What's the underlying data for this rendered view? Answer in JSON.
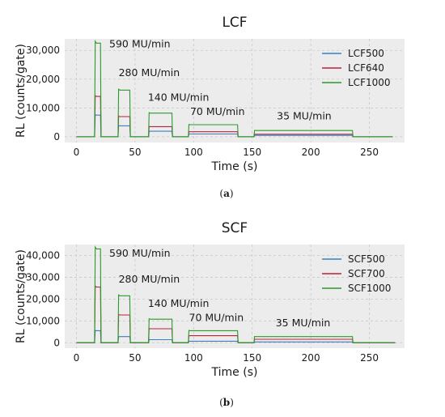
{
  "chart_data": [
    {
      "type": "line",
      "title": "LCF",
      "caption": "a",
      "xlabel": "Time (s)",
      "ylabel": "RL (counts/gate)",
      "xlim": [
        -10,
        280
      ],
      "ylim": [
        -2000,
        34000
      ],
      "x_ticks": [
        0,
        50,
        100,
        150,
        200,
        250
      ],
      "y_ticks": [
        0,
        10000,
        20000,
        30000
      ],
      "y_tick_labels": [
        "0",
        "10,000",
        "20,000",
        "30,000"
      ],
      "grid": true,
      "legend_position": "top-right",
      "steps": [
        {
          "label": "590 MU/min",
          "x_start": 16,
          "x_end": 21
        },
        {
          "label": "280 MU/min",
          "x_start": 36,
          "x_end": 46
        },
        {
          "label": "140 MU/min",
          "x_start": 62,
          "x_end": 82
        },
        {
          "label": "70 MU/min",
          "x_start": 96,
          "x_end": 138
        },
        {
          "label": "35 MU/min",
          "x_start": 152,
          "x_end": 236
        }
      ],
      "annotation_positions": [
        {
          "x": 28,
          "y": 31000
        },
        {
          "x": 36,
          "y": 21000
        },
        {
          "x": 61,
          "y": 12500
        },
        {
          "x": 97,
          "y": 7500
        },
        {
          "x": 171,
          "y": 6000
        }
      ],
      "x_end": 270,
      "series": [
        {
          "name": "LCF500",
          "color": "#3b7fc4",
          "levels": [
            7500,
            3800,
            1900,
            950,
            480
          ]
        },
        {
          "name": "LCF640",
          "color": "#b8233a",
          "levels": [
            14000,
            7000,
            3500,
            1750,
            880
          ]
        },
        {
          "name": "LCF1000",
          "color": "#2a9a2a",
          "levels": [
            32500,
            16200,
            8200,
            4200,
            2150
          ]
        }
      ]
    },
    {
      "type": "line",
      "title": "SCF",
      "caption": "b",
      "xlabel": "Time (s)",
      "ylabel": "RL (counts/gate)",
      "xlim": [
        -10,
        280
      ],
      "ylim": [
        -2500,
        45000
      ],
      "x_ticks": [
        0,
        50,
        100,
        150,
        200,
        250
      ],
      "y_ticks": [
        0,
        10000,
        20000,
        30000,
        40000
      ],
      "y_tick_labels": [
        "0",
        "10,000",
        "20,000",
        "30,000",
        "40,000"
      ],
      "grid": true,
      "legend_position": "top-right",
      "steps": [
        {
          "label": "590 MU/min",
          "x_start": 16,
          "x_end": 21
        },
        {
          "label": "280 MU/min",
          "x_start": 36,
          "x_end": 46
        },
        {
          "label": "140 MU/min",
          "x_start": 62,
          "x_end": 82
        },
        {
          "label": "70 MU/min",
          "x_start": 96,
          "x_end": 138
        },
        {
          "label": "35 MU/min",
          "x_start": 152,
          "x_end": 236
        }
      ],
      "annotation_positions": [
        {
          "x": 28,
          "y": 39500
        },
        {
          "x": 36,
          "y": 27500
        },
        {
          "x": 61,
          "y": 16500
        },
        {
          "x": 96,
          "y": 10000
        },
        {
          "x": 170,
          "y": 7500
        }
      ],
      "x_end": 272,
      "series": [
        {
          "name": "SCF500",
          "color": "#3b7fc4",
          "levels": [
            5500,
            2800,
            1400,
            700,
            350
          ]
        },
        {
          "name": "SCF700",
          "color": "#b8233a",
          "levels": [
            25500,
            12700,
            6400,
            3200,
            1600
          ]
        },
        {
          "name": "SCF1000",
          "color": "#2a9a2a",
          "levels": [
            43000,
            21500,
            10800,
            5500,
            2800
          ]
        }
      ]
    }
  ]
}
